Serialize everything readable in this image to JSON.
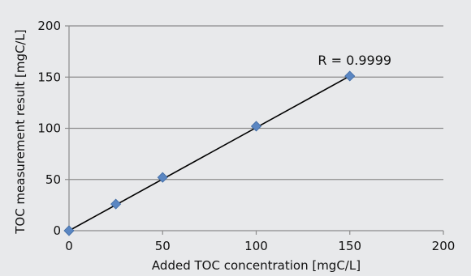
{
  "chart_data": {
    "type": "scatter",
    "xlabel": "Added TOC concentration [mgC/L]",
    "ylabel": "TOC measurement result [mgC/L]",
    "xlim": [
      0,
      200
    ],
    "ylim": [
      0,
      200
    ],
    "xticks": [
      0,
      50,
      100,
      150,
      200
    ],
    "yticks": [
      0,
      50,
      100,
      150,
      200
    ],
    "grid": "horizontal",
    "series": [
      {
        "points": [
          {
            "x": 0,
            "y": 0
          },
          {
            "x": 25,
            "y": 26
          },
          {
            "x": 50,
            "y": 52
          },
          {
            "x": 100,
            "y": 102
          },
          {
            "x": 150,
            "y": 151
          }
        ],
        "marker": "diamond",
        "color": "#5a86c2"
      }
    ],
    "trendline": {
      "from": [
        0,
        0
      ],
      "to": [
        150,
        151
      ],
      "color": "#000000"
    },
    "annotation": {
      "text": "R = 0.9999",
      "x": 150,
      "y": 151
    }
  }
}
